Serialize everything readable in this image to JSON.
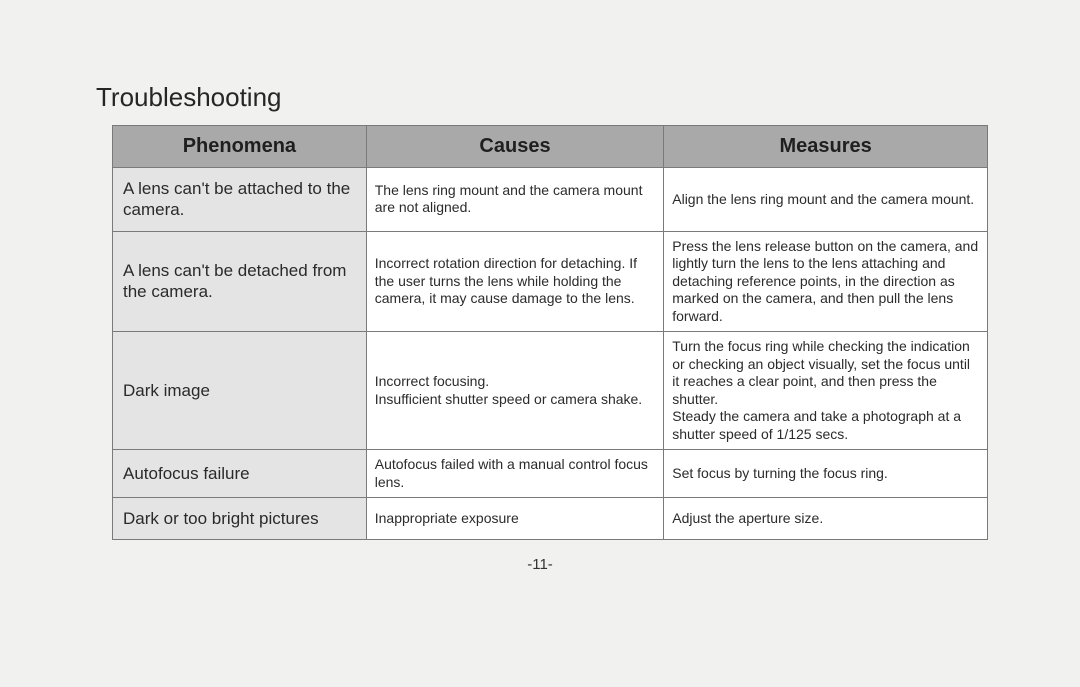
{
  "heading": "Troubleshooting",
  "page_number": "-11-",
  "table": {
    "columns": [
      "Phenomena",
      "Causes",
      "Measures"
    ],
    "col_widths_pct": [
      29,
      34,
      37
    ],
    "header_bg": "#a9a9a9",
    "phenomena_bg": "#e4e4e4",
    "border_color": "#7a7a7a",
    "header_fontsize": 20,
    "phenomena_fontsize": 17,
    "cell_fontsize": 14,
    "rows": [
      {
        "phenomena": "A lens can't be attached to the camera.",
        "causes": "The lens ring mount and the camera mount are not aligned.",
        "measures": "Align the lens ring mount and the camera mount."
      },
      {
        "phenomena": "A lens can't be detached from the camera.",
        "causes": "Incorrect rotation direction for detaching. If the user turns the lens while holding the camera, it may cause damage to the lens.",
        "measures": "Press the lens release button on the camera, and lightly turn the lens to the lens attaching and detaching reference points, in the direction as marked on the camera, and then pull the lens forward."
      },
      {
        "phenomena": "Dark image",
        "causes": "Incorrect focusing.\nInsufficient shutter speed or camera shake.",
        "measures": "Turn the focus ring while checking the indication or checking an object visually, set the focus until it reaches a clear point, and then press the shutter.\nSteady the camera and take a photograph at a shutter speed of 1/125 secs."
      },
      {
        "phenomena": "Autofocus failure",
        "causes": "Autofocus failed with a manual control focus lens.",
        "measures": "Set focus by turning the focus ring."
      },
      {
        "phenomena": "Dark or too bright pictures",
        "causes": "Inappropriate exposure",
        "measures": "Adjust the aperture size."
      }
    ]
  },
  "colors": {
    "page_bg": "#f1f1f0",
    "text": "#222222"
  }
}
